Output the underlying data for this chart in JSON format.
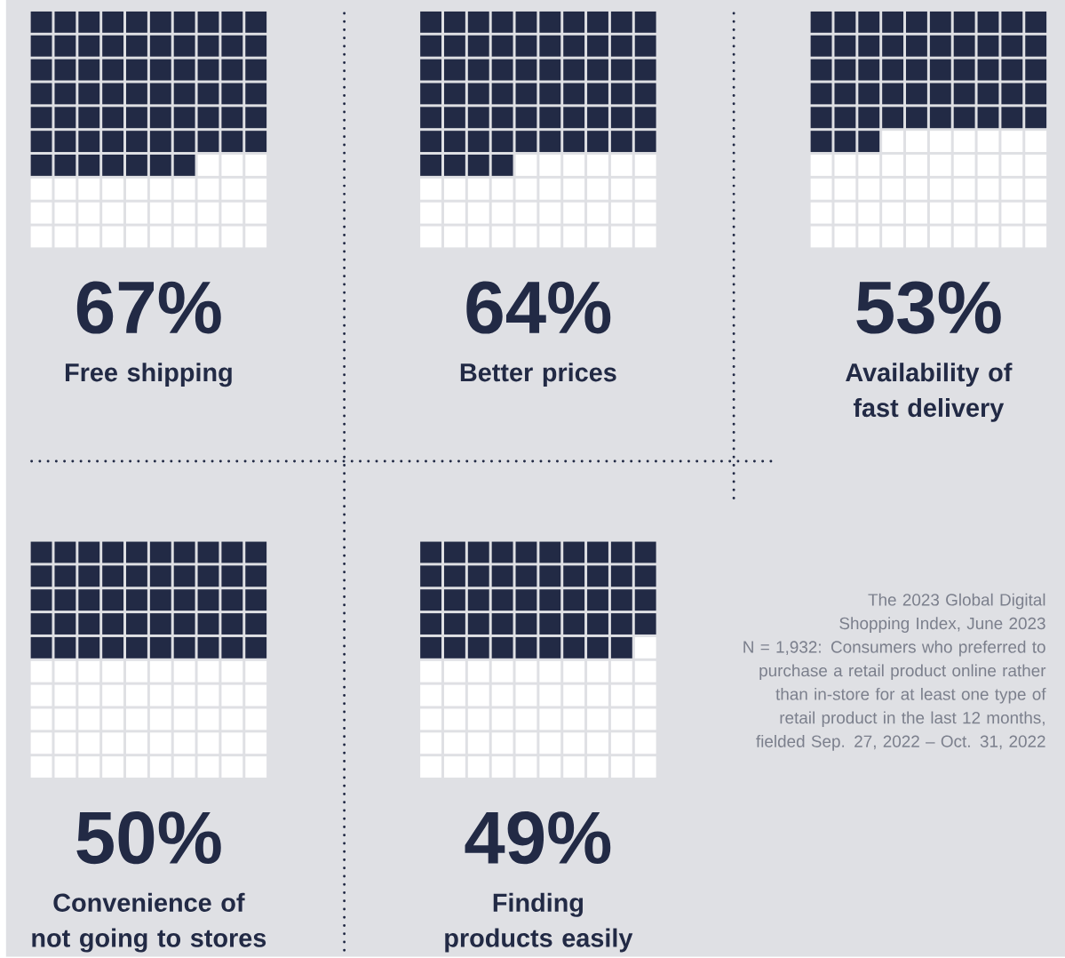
{
  "chart_data": {
    "type": "other",
    "categories": [
      "Free shipping",
      "Better prices",
      "Availability of fast delivery",
      "Convenience of not going to stores",
      "Finding products easily"
    ],
    "values": [
      67,
      64,
      53,
      50,
      49
    ],
    "value_labels": [
      "67%",
      "64%",
      "53%",
      "50%",
      "49%"
    ],
    "color": "#222a45",
    "annotations": [
      "The 2023 Global Digital Shopping Index, June 2023",
      "N = 1,932: Consumers who preferred to purchase a retail product online rather than in-store for at least one type of retail product in the last 12 months, fielded Sep. 27, 2022 – Oct. 31, 2022"
    ]
  }
}
